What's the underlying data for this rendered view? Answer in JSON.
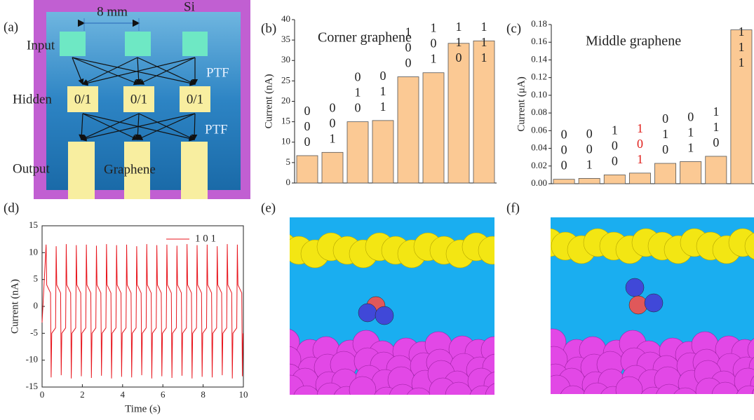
{
  "panel_labels": [
    "(a)",
    "(b)",
    "(c)",
    "(d)",
    "(e)",
    "(f)"
  ],
  "diagram": {
    "scale": "8 mm",
    "substrate": "Si",
    "layers": [
      "Input",
      "Hidden",
      "Output"
    ],
    "nodes": [
      "0/1",
      "0/1",
      "0/1"
    ],
    "ptf": [
      "PTF",
      "PTF"
    ],
    "electrode": "Graphene"
  },
  "chart_data": [
    {
      "type": "bar",
      "title": "Corner graphene",
      "ylabel": "Current (nA)",
      "categories": [
        "000",
        "001",
        "010",
        "011",
        "100",
        "101",
        "110",
        "111"
      ],
      "values": [
        6.7,
        7.5,
        15,
        15.3,
        26,
        27,
        34.2,
        34.8
      ],
      "color": "#fbc994",
      "ylim": [
        0,
        40
      ],
      "yticks": [
        0,
        5,
        10,
        15,
        20,
        25,
        30,
        35,
        40
      ]
    },
    {
      "type": "bar",
      "title": "Middle graphene",
      "ylabel": "Current (μA)",
      "categories": [
        "000",
        "001",
        "100",
        "101",
        "010",
        "011",
        "110",
        "111"
      ],
      "values": [
        0.005,
        0.006,
        0.01,
        0.012,
        0.023,
        0.025,
        0.031,
        0.174
      ],
      "label_colors": [
        "#222222",
        "#222222",
        "#222222",
        "#e0201c",
        "#222222",
        "#222222",
        "#222222",
        "#222222"
      ],
      "color": "#fbc994",
      "ylim": [
        0,
        0.18
      ],
      "yticks": [
        {
          "value": 0,
          "label": "0.00"
        },
        {
          "value": 0.02,
          "label": "0.02"
        },
        {
          "value": 0.04,
          "label": "0.04"
        },
        {
          "value": 0.06,
          "label": "0.06"
        },
        {
          "value": 0.08,
          "label": "0.08"
        },
        {
          "value": 0.1,
          "label": "0.10"
        },
        {
          "value": 0.12,
          "label": "0.12"
        },
        {
          "value": 0.14,
          "label": "0.14"
        },
        {
          "value": 0.16,
          "label": "0.16"
        },
        {
          "value": 0.18,
          "label": "0.18"
        }
      ]
    },
    {
      "type": "line",
      "xlabel": "Time (s)",
      "ylabel": "Current (nA)",
      "legend": "upper right",
      "x": [
        0,
        0.2,
        0.23,
        0.42,
        0.45,
        0.48,
        0.67,
        0.7,
        0.73,
        0.92,
        0.95,
        0.98,
        1.17,
        1.2,
        1.23,
        1.42,
        1.45,
        1.48,
        1.67,
        1.7,
        1.73,
        1.92,
        1.95,
        1.98,
        2.17,
        2.2,
        2.23,
        2.42,
        2.45,
        2.48,
        2.67,
        2.7,
        2.73,
        2.92,
        2.95,
        2.98,
        3.17,
        3.2,
        3.23,
        3.42,
        3.45,
        3.48,
        3.67,
        3.7,
        3.73,
        3.92,
        3.95,
        3.98,
        4.17,
        4.2,
        4.23,
        4.42,
        4.45,
        4.48,
        4.67,
        4.7,
        4.73,
        4.92,
        4.95,
        4.98,
        5.17,
        5.2,
        5.23,
        5.42,
        5.45,
        5.48,
        5.67,
        5.7,
        5.73,
        5.92,
        5.95,
        5.98,
        6.17,
        6.2,
        6.23,
        6.42,
        6.45,
        6.48,
        6.67,
        6.7,
        6.73,
        6.92,
        6.95,
        6.98,
        7.17,
        7.2,
        7.23,
        7.42,
        7.45,
        7.48,
        7.67,
        7.7,
        7.73,
        7.92,
        7.95,
        7.98,
        8.17,
        8.2,
        8.23,
        8.42,
        8.45,
        8.48,
        8.67,
        8.7,
        8.73,
        8.92,
        8.95,
        8.98,
        9.17,
        9.2,
        9.23,
        9.42,
        9.45,
        9.48,
        9.67,
        9.7,
        9.73,
        9.92,
        9.95,
        9.98
      ],
      "series": [
        {
          "name": "1 0 1",
          "color": "#e8141c",
          "values": [
            -3,
            11.5,
            4,
            2.5,
            -13.2,
            -5,
            -4,
            11.2,
            4,
            2.5,
            -12.8,
            -5,
            -4,
            11.6,
            4,
            2.5,
            -13.4,
            -5,
            -4,
            11.4,
            4,
            2.5,
            -13,
            -5,
            -4,
            11.5,
            4,
            2.5,
            -13.3,
            -5,
            -4,
            11.3,
            4,
            2.5,
            -12.9,
            -5,
            -4,
            11.6,
            4,
            2.5,
            -13.4,
            -5,
            -4,
            11.4,
            4,
            2.5,
            -13.1,
            -5,
            -4,
            11.5,
            4,
            2.5,
            -13.2,
            -5,
            -4,
            11.2,
            4,
            2.5,
            -12.8,
            -5,
            -4,
            11.6,
            4,
            2.5,
            -13.4,
            -5,
            -4,
            11.4,
            4,
            2.5,
            -13,
            -5,
            -4,
            11.5,
            4,
            2.5,
            -13.3,
            -5,
            -4,
            11.3,
            4,
            2.5,
            -12.9,
            -5,
            -4,
            11.6,
            4,
            2.5,
            -13.4,
            -5,
            -4,
            11.4,
            4,
            2.5,
            -13.1,
            -5,
            -4,
            11.5,
            4,
            2.5,
            -13.2,
            -5,
            -4,
            11.2,
            4,
            2.5,
            -12.8,
            -5,
            -4,
            11.6,
            4,
            2.5,
            -13.4,
            -5,
            -4,
            11.5,
            4,
            2.5,
            -13,
            -5
          ]
        }
      ],
      "xlim": [
        0,
        10
      ],
      "xticks": [
        0,
        2,
        4,
        6,
        8,
        10
      ],
      "ylim": [
        -15,
        15
      ],
      "yticks": [
        -15,
        -10,
        -5,
        0,
        5,
        10,
        15
      ]
    }
  ]
}
